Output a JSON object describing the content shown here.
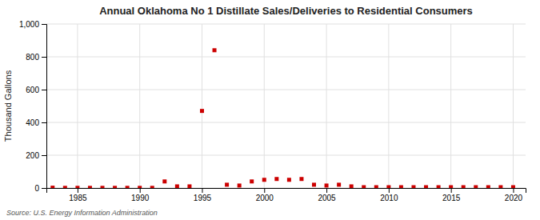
{
  "chart_data": {
    "type": "scatter",
    "title": "Annual Oklahoma No 1 Distillate Sales/Deliveries to Residential Consumers",
    "ylabel": "Thousand Gallons",
    "annotations": [
      "Source: U.S. Energy Information Administration"
    ],
    "x": [
      1983,
      1984,
      1985,
      1986,
      1987,
      1988,
      1989,
      1990,
      1991,
      1992,
      1993,
      1994,
      1995,
      1996,
      1997,
      1998,
      1999,
      2000,
      2001,
      2002,
      2003,
      2004,
      2005,
      2006,
      2007,
      2008,
      2009,
      2010,
      2011,
      2012,
      2013,
      2014,
      2015,
      2016,
      2017,
      2018,
      2019,
      2020
    ],
    "values": [
      2,
      1,
      1,
      1,
      1,
      1,
      1,
      1,
      1,
      40,
      10,
      10,
      470,
      840,
      20,
      15,
      40,
      50,
      55,
      50,
      55,
      20,
      15,
      20,
      10,
      5,
      5,
      5,
      5,
      5,
      5,
      5,
      5,
      5,
      5,
      5,
      5,
      5
    ],
    "color": "#cc0000",
    "marker": "square",
    "xlim": [
      1982.5,
      2021
    ],
    "xticks": [
      1985,
      1990,
      1995,
      2000,
      2005,
      2010,
      2015,
      2020
    ],
    "ylim": [
      0,
      1000
    ],
    "yticks": [
      0,
      200,
      400,
      600,
      800,
      {
        "value": 1000,
        "label": "1,000"
      }
    ],
    "grid": true
  }
}
